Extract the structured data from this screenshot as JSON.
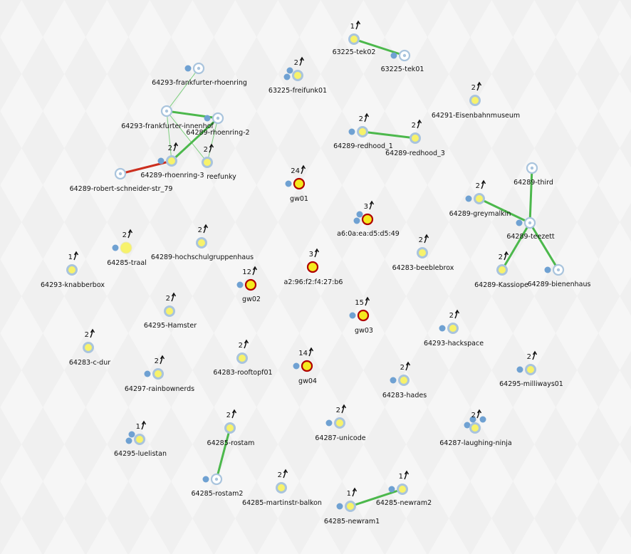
{
  "colors": {
    "link_good": "#4cb84c",
    "link_thin": "#7ccf7c",
    "link_bad": "#cc2f1f",
    "node_online_fill": "#f7f26b",
    "node_online_ring": "#a9c4dd",
    "node_gw_fill": "#f5ea1e",
    "node_gw_ring": "#b00000",
    "node_offline_ring": "#a9c4dd",
    "client_dot": "#6fa1d2"
  },
  "nodes": [
    {
      "id": "tek02",
      "label": "63225-tek02",
      "count": "1",
      "type": "online",
      "clients": 0
    },
    {
      "id": "tek01",
      "label": "63225-tek01",
      "count": "",
      "type": "offline",
      "clients": 1
    },
    {
      "id": "freifunk01",
      "label": "63225-freifunk01",
      "count": "2",
      "type": "online",
      "clients": 2
    },
    {
      "id": "frankfurter-rhoenring",
      "label": "64293-frankfurter-rhoenring",
      "count": "",
      "type": "offline",
      "clients": 1
    },
    {
      "id": "eisenbahn",
      "label": "64291-Eisenbahnmuseum",
      "count": "2",
      "type": "online",
      "clients": 0
    },
    {
      "id": "frankfurter-innenhof",
      "label": "64293-frankfurter-innenhof",
      "count": "",
      "type": "offline",
      "clients": 0
    },
    {
      "id": "rhoenring-2",
      "label": "64289-rhoenring-2",
      "count": "",
      "type": "offline",
      "clients": 1
    },
    {
      "id": "redhood_1",
      "label": "64289-redhood_1",
      "count": "2",
      "type": "online",
      "clients": 1
    },
    {
      "id": "redhood_3",
      "label": "64289-redhood_3",
      "count": "2",
      "type": "online",
      "clients": 0
    },
    {
      "id": "rhoenring-3",
      "label": "64289-rhoenring-3",
      "count": "2",
      "type": "online",
      "clients": 1
    },
    {
      "id": "reefunky",
      "label": "reefunky",
      "count": "2",
      "type": "online",
      "clients": 0
    },
    {
      "id": "robert",
      "label": "64289-robert-schneider-str_79",
      "count": "",
      "type": "offline",
      "clients": 0
    },
    {
      "id": "gw01",
      "label": "gw01",
      "count": "24",
      "type": "gw",
      "clients": 1
    },
    {
      "id": "third",
      "label": "64289-third",
      "count": "",
      "type": "offline",
      "clients": 0
    },
    {
      "id": "greymalkin",
      "label": "64289-greymalkin",
      "count": "2",
      "type": "online",
      "clients": 1
    },
    {
      "id": "teezett",
      "label": "64289-teezett",
      "count": "",
      "type": "offline",
      "clients": 1
    },
    {
      "id": "a6",
      "label": "a6:0a:ea:d5:d5:49",
      "count": "3",
      "type": "gw",
      "clients": 2
    },
    {
      "id": "traal",
      "label": "64285-traal",
      "count": "2",
      "type": "online-plain",
      "clients": 1
    },
    {
      "id": "hochschul",
      "label": "64289-hochschulgruppenhaus",
      "count": "2",
      "type": "online",
      "clients": 0
    },
    {
      "id": "beeblebrox",
      "label": "64283-beeblebrox",
      "count": "2",
      "type": "online",
      "clients": 0
    },
    {
      "id": "knabberbox",
      "label": "64293-knabberbox",
      "count": "1",
      "type": "online",
      "clients": 0
    },
    {
      "id": "a2",
      "label": "a2:96:f2:f4:27:b6",
      "count": "3",
      "type": "gw",
      "clients": 0
    },
    {
      "id": "kassiope",
      "label": "64289-Kassiope",
      "count": "2",
      "type": "online",
      "clients": 0
    },
    {
      "id": "bienenhaus",
      "label": "64289-bienenhaus",
      "count": "",
      "type": "offline",
      "clients": 1
    },
    {
      "id": "gw02",
      "label": "gw02",
      "count": "12",
      "type": "gw",
      "clients": 1
    },
    {
      "id": "hamster",
      "label": "64295-Hamster",
      "count": "2",
      "type": "online",
      "clients": 0
    },
    {
      "id": "gw03",
      "label": "gw03",
      "count": "15",
      "type": "gw",
      "clients": 1
    },
    {
      "id": "hackspace",
      "label": "64293-hackspace",
      "count": "2",
      "type": "online",
      "clients": 1
    },
    {
      "id": "cdur",
      "label": "64283-c-dur",
      "count": "2",
      "type": "online",
      "clients": 0
    },
    {
      "id": "rooftopf",
      "label": "64283-rooftopf01",
      "count": "2",
      "type": "online",
      "clients": 0
    },
    {
      "id": "gw04",
      "label": "gw04",
      "count": "14",
      "type": "gw",
      "clients": 1
    },
    {
      "id": "milliways",
      "label": "64295-milliways01",
      "count": "2",
      "type": "online",
      "clients": 1
    },
    {
      "id": "rainbownerds",
      "label": "64297-rainbownerds",
      "count": "2",
      "type": "online",
      "clients": 1
    },
    {
      "id": "hades",
      "label": "64283-hades",
      "count": "2",
      "type": "online",
      "clients": 1
    },
    {
      "id": "rostam",
      "label": "64285-rostam",
      "count": "2",
      "type": "online",
      "clients": 0
    },
    {
      "id": "unicode",
      "label": "64287-unicode",
      "count": "2",
      "type": "online",
      "clients": 1
    },
    {
      "id": "laughing",
      "label": "64287-laughing-ninja",
      "count": "2",
      "type": "online",
      "clients": 3
    },
    {
      "id": "luelistan",
      "label": "64295-luelistan",
      "count": "1",
      "type": "online",
      "clients": 2
    },
    {
      "id": "rostam2",
      "label": "64285-rostam2",
      "count": "",
      "type": "offline",
      "clients": 1
    },
    {
      "id": "martinstr",
      "label": "64285-martinstr-balkon",
      "count": "2",
      "type": "online",
      "clients": 0
    },
    {
      "id": "newram2",
      "label": "64285-newram2",
      "count": "1",
      "type": "online",
      "clients": 1
    },
    {
      "id": "newram1",
      "label": "64285-newram1",
      "count": "1",
      "type": "online",
      "clients": 1
    }
  ],
  "links": [
    {
      "from": "tek02",
      "to": "tek01",
      "quality": "good"
    },
    {
      "from": "frankfurter-innenhof",
      "to": "frankfurter-rhoenring",
      "quality": "thin"
    },
    {
      "from": "frankfurter-innenhof",
      "to": "rhoenring-2",
      "quality": "good"
    },
    {
      "from": "frankfurter-innenhof",
      "to": "reefunky",
      "quality": "thin"
    },
    {
      "from": "frankfurter-innenhof",
      "to": "rhoenring-3",
      "quality": "thin"
    },
    {
      "from": "rhoenring-2",
      "to": "rhoenring-3",
      "quality": "good"
    },
    {
      "from": "rhoenring-2",
      "to": "reefunky",
      "quality": "thin"
    },
    {
      "from": "rhoenring-3",
      "to": "robert",
      "quality": "bad"
    },
    {
      "from": "redhood_1",
      "to": "redhood_3",
      "quality": "good"
    },
    {
      "from": "third",
      "to": "teezett",
      "quality": "good"
    },
    {
      "from": "greymalkin",
      "to": "teezett",
      "quality": "good"
    },
    {
      "from": "teezett",
      "to": "kassiope",
      "quality": "good"
    },
    {
      "from": "teezett",
      "to": "bienenhaus",
      "quality": "good"
    },
    {
      "from": "rostam",
      "to": "rostam2",
      "quality": "good"
    },
    {
      "from": "newram1",
      "to": "newram2",
      "quality": "good"
    }
  ]
}
